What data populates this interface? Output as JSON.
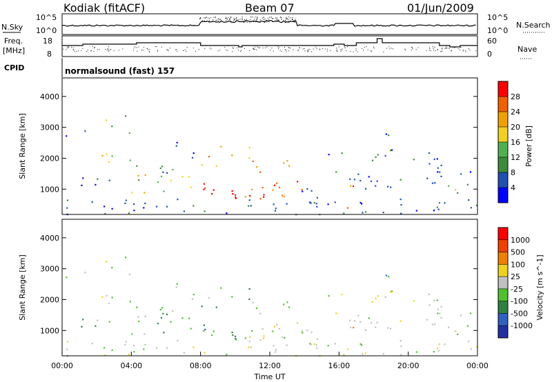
{
  "header": {
    "station": "Kodiak (fitACF)",
    "beam": "Beam 07",
    "date": "01/Jun/2009"
  },
  "strip_panels": {
    "noise_left_label": "N.Sky",
    "noise_right_label": "N.Search",
    "noise_left_ticks": [
      "10^5",
      "10^0"
    ],
    "noise_right_ticks": [
      "10^5",
      "10^0"
    ],
    "freq_label_1": "Freq.",
    "freq_label_2": "[MHz]",
    "freq_ticks": [
      "18",
      "8"
    ],
    "nave_label": "Nave",
    "nave_ticks": [
      "60",
      "0"
    ],
    "cpid_label": "CPID",
    "cpid_value": "normalsound (fast) 157"
  },
  "colors": {
    "power_scale": [
      "#0000ff",
      "#2050b0",
      "#3c8a3c",
      "#50b050",
      "#f0d020",
      "#f0a000",
      "#f06000",
      "#ff0000"
    ],
    "velocity_scale": [
      "#2030a0",
      "#3060c0",
      "#308040",
      "#50c030",
      "#c0c0c0",
      "#f0d020",
      "#f08000",
      "#f04000",
      "#ff0000"
    ]
  },
  "chart_data": [
    {
      "type": "heatmap",
      "panel": "power",
      "ylabel": "Slant Range [km]",
      "yticks": [
        "4000",
        "3000",
        "2000",
        "1000"
      ],
      "ylim": [
        180,
        4600
      ],
      "colorbar_label": "Power [dB]",
      "colorbar_ticks": [
        "28",
        "24",
        "20",
        "16",
        "12",
        "8",
        "4"
      ],
      "colorbar_range": [
        0,
        32
      ]
    },
    {
      "type": "heatmap",
      "panel": "velocity",
      "ylabel": "Slant Range [km]",
      "yticks": [
        "4000",
        "3000",
        "2000",
        "1000"
      ],
      "ylim": [
        180,
        4600
      ],
      "colorbar_label": "Velocity [m s^-1]",
      "colorbar_ticks": [
        "1000",
        "500",
        "100",
        "25",
        "-25",
        "-100",
        "-500",
        "-1000"
      ],
      "xlabel": "Time UT",
      "xticks": [
        "00:00",
        "04:00",
        "08:00",
        "12:00",
        "16:00",
        "20:00",
        "00:00"
      ]
    }
  ]
}
